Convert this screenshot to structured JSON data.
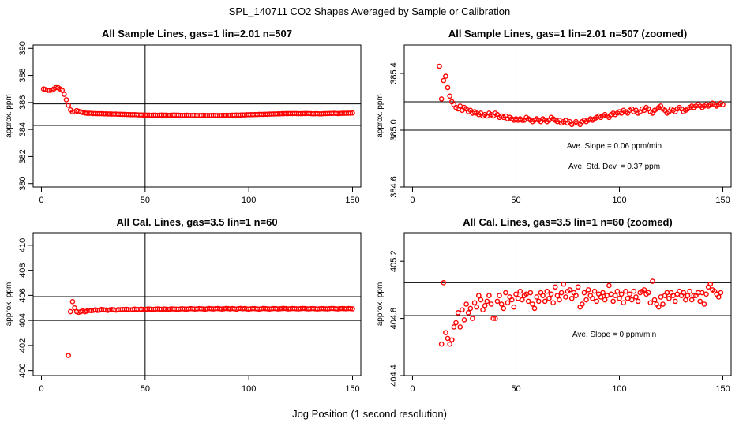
{
  "figure": {
    "title": "SPL_140711  CO2 Shapes Averaged by Sample or Calibration",
    "xlabel": "Jog Position (1 second resolution)"
  },
  "colors": {
    "points": "#ff0000",
    "lines": "#000000",
    "background": "#ffffff"
  },
  "chart_data": [
    {
      "type": "scatter",
      "title": "All Sample Lines, gas=1 lin=2.01 n=507",
      "ylabel": "approx. ppm",
      "xlim": [
        -4,
        154
      ],
      "ylim": [
        379.75,
        390.25
      ],
      "xticks": [
        0,
        50,
        100,
        150
      ],
      "yticks": [
        380,
        382,
        384,
        386,
        388,
        390
      ],
      "hlines": [
        385.9,
        384.3
      ],
      "vline": 50,
      "annotations": [],
      "series": [
        {
          "start": 1,
          "step": 1,
          "values": [
            387.0,
            386.95,
            386.9,
            386.9,
            386.92,
            387.0,
            387.1,
            387.1,
            387.0,
            386.9,
            386.6,
            386.2,
            385.8,
            385.45,
            385.3,
            385.3,
            385.4,
            385.35,
            385.3,
            385.25,
            385.22,
            385.2,
            385.2,
            385.2,
            385.18,
            385.18,
            385.17,
            385.17,
            385.17,
            385.16,
            385.16,
            385.15,
            385.15,
            385.14,
            385.14,
            385.14,
            385.13,
            385.13,
            385.12,
            385.12,
            385.11,
            385.11,
            385.1,
            385.1,
            385.1,
            385.09,
            385.08,
            385.08,
            385.07,
            385.07,
            385.06,
            385.06,
            385.05,
            385.06,
            385.06,
            385.05,
            385.06,
            385.07,
            385.06,
            385.06,
            385.05,
            385.05,
            385.06,
            385.07,
            385.06,
            385.06,
            385.05,
            385.04,
            385.05,
            385.06,
            385.05,
            385.04,
            385.04,
            385.05,
            385.04,
            385.03,
            385.04,
            385.05,
            385.04,
            385.03,
            385.03,
            385.04,
            385.05,
            385.04,
            385.03,
            385.03,
            385.04,
            385.05,
            385.05,
            385.04,
            385.05,
            385.06,
            385.06,
            385.07,
            385.06,
            385.07,
            385.08,
            385.08,
            385.09,
            385.09,
            385.1,
            385.1,
            385.11,
            385.11,
            385.12,
            385.12,
            385.12,
            385.13,
            385.13,
            385.14,
            385.14,
            385.15,
            385.15,
            385.16,
            385.16,
            385.17,
            385.17,
            385.18,
            385.18,
            385.18,
            385.18,
            385.19,
            385.18,
            385.17,
            385.17,
            385.18,
            385.18,
            385.19,
            385.18,
            385.17,
            385.16,
            385.17,
            385.17,
            385.16,
            385.16,
            385.17,
            385.18,
            385.18,
            385.19,
            385.19,
            385.2,
            385.19,
            385.18,
            385.19,
            385.2,
            385.2,
            385.2,
            385.21,
            385.21,
            385.22
          ]
        }
      ]
    },
    {
      "type": "scatter",
      "title": "All Sample Lines, gas=1 lin=2.01 n=507 (zoomed)",
      "ylabel": "approx. ppm",
      "xlim": [
        -4,
        154
      ],
      "ylim": [
        384.6,
        385.6
      ],
      "xticks": [
        0,
        50,
        100,
        150
      ],
      "yticks": [
        384.6,
        385.0,
        385.4
      ],
      "hlines": [
        385.2,
        385.0
      ],
      "vline": 50,
      "annotations": [
        "Ave. Slope =  0.06  ppm/min",
        "Ave. Std. Dev. =  0.37  ppm"
      ],
      "series": [
        {
          "start": 13,
          "step": 1,
          "values": [
            385.45,
            385.22,
            385.35,
            385.38,
            385.3,
            385.24,
            385.2,
            385.18,
            385.16,
            385.15,
            385.17,
            385.14,
            385.16,
            385.15,
            385.13,
            385.14,
            385.12,
            385.13,
            385.12,
            385.11,
            385.12,
            385.1,
            385.11,
            385.1,
            385.12,
            385.11,
            385.1,
            385.12,
            385.11,
            385.09,
            385.1,
            385.09,
            385.1,
            385.08,
            385.09,
            385.08,
            385.07,
            385.08,
            385.07,
            385.08,
            385.07,
            385.07,
            385.09,
            385.08,
            385.07,
            385.06,
            385.07,
            385.08,
            385.07,
            385.06,
            385.08,
            385.07,
            385.06,
            385.07,
            385.09,
            385.08,
            385.07,
            385.06,
            385.07,
            385.05,
            385.06,
            385.07,
            385.05,
            385.06,
            385.04,
            385.05,
            385.06,
            385.05,
            385.04,
            385.06,
            385.07,
            385.06,
            385.07,
            385.08,
            385.07,
            385.08,
            385.09,
            385.1,
            385.09,
            385.1,
            385.11,
            385.1,
            385.09,
            385.11,
            385.12,
            385.11,
            385.12,
            385.13,
            385.12,
            385.14,
            385.13,
            385.12,
            385.14,
            385.15,
            385.13,
            385.14,
            385.12,
            385.13,
            385.15,
            385.14,
            385.16,
            385.15,
            385.13,
            385.12,
            385.14,
            385.15,
            385.16,
            385.17,
            385.15,
            385.14,
            385.12,
            385.13,
            385.15,
            385.14,
            385.13,
            385.15,
            385.16,
            385.15,
            385.13,
            385.14,
            385.15,
            385.16,
            385.17,
            385.16,
            385.17,
            385.18,
            385.17,
            385.16,
            385.17,
            385.18,
            385.17,
            385.18,
            385.19,
            385.18,
            385.17,
            385.18,
            385.19,
            385.18
          ]
        }
      ]
    },
    {
      "type": "scatter",
      "title": "All Cal. Lines, gas=3.5 lin=1 n=60",
      "ylabel": "approx. ppm",
      "xlim": [
        -4,
        154
      ],
      "ylim": [
        399.6,
        411.0
      ],
      "xticks": [
        0,
        50,
        100,
        150
      ],
      "yticks": [
        400,
        402,
        404,
        406,
        408,
        410
      ],
      "hlines": [
        405.9,
        404.0
      ],
      "vline": 50,
      "annotations": [],
      "series": [
        {
          "start": 13,
          "step": 1,
          "values": [
            401.2,
            404.7,
            405.5,
            405.0,
            404.7,
            404.65,
            404.7,
            404.75,
            404.7,
            404.75,
            404.8,
            404.78,
            404.8,
            404.85,
            404.8,
            404.82,
            404.88,
            404.85,
            404.83,
            404.8,
            404.85,
            404.87,
            404.85,
            404.82,
            404.86,
            404.85,
            404.88,
            404.87,
            404.89,
            404.86,
            404.84,
            404.87,
            404.9,
            404.88,
            404.86,
            404.9,
            404.88,
            404.87,
            404.9,
            404.91,
            404.89,
            404.88,
            404.9,
            404.92,
            404.9,
            404.89,
            404.91,
            404.9,
            404.88,
            404.9,
            404.92,
            404.91,
            404.9,
            404.89,
            404.92,
            404.93,
            404.91,
            404.9,
            404.92,
            404.94,
            404.93,
            404.91,
            404.92,
            404.94,
            404.93,
            404.92,
            404.9,
            404.93,
            404.95,
            404.93,
            404.92,
            404.94,
            404.95,
            404.93,
            404.91,
            404.93,
            404.96,
            404.94,
            404.92,
            404.95,
            404.93,
            404.9,
            404.94,
            404.96,
            404.93,
            404.95,
            404.92,
            404.9,
            404.93,
            404.95,
            404.94,
            404.92,
            404.9,
            404.93,
            404.96,
            404.94,
            404.93,
            404.91,
            404.93,
            404.95,
            404.94,
            404.92,
            404.93,
            404.95,
            404.96,
            404.94,
            404.92,
            404.93,
            404.95,
            404.94,
            404.93,
            404.92,
            404.94,
            404.96,
            404.95,
            404.93,
            404.92,
            404.94,
            404.95,
            404.93,
            404.91,
            404.93,
            404.95,
            404.94,
            404.93,
            404.92,
            404.94,
            404.96,
            404.95,
            404.93,
            404.92,
            404.94,
            404.95,
            404.94,
            404.93,
            404.95,
            404.94,
            404.93
          ]
        }
      ]
    },
    {
      "type": "scatter",
      "title": "All Cal. Lines, gas=3.5 lin=1 n=60 (zoomed)",
      "ylabel": "approx. ppm",
      "xlim": [
        -4,
        154
      ],
      "ylim": [
        404.4,
        405.4
      ],
      "xticks": [
        0,
        50,
        100,
        150
      ],
      "yticks": [
        404.4,
        404.8,
        405.2
      ],
      "hlines": [
        405.05,
        404.82
      ],
      "vline": 50,
      "annotations": [
        "Ave. Slope =  0  ppm/min"
      ],
      "series": [
        {
          "start": 14,
          "step": 1,
          "values": [
            404.62,
            405.05,
            404.7,
            404.66,
            404.62,
            404.65,
            404.74,
            404.77,
            404.84,
            404.74,
            404.86,
            404.79,
            404.9,
            404.84,
            404.87,
            404.8,
            404.91,
            404.88,
            404.96,
            404.93,
            404.86,
            404.89,
            404.92,
            404.96,
            404.9,
            404.8,
            404.8,
            404.92,
            404.96,
            404.9,
            404.87,
            404.98,
            404.91,
            404.95,
            404.93,
            404.88,
            404.97,
            404.94,
            404.99,
            404.93,
            404.96,
            404.97,
            404.92,
            404.98,
            404.9,
            404.87,
            404.95,
            404.92,
            404.98,
            404.96,
            404.92,
            404.99,
            404.94,
            404.97,
            404.91,
            405.02,
            404.96,
            404.93,
            404.98,
            405.04,
            404.95,
            404.99,
            405.0,
            404.94,
            404.98,
            404.96,
            405.02,
            404.88,
            404.9,
            404.98,
            404.93,
            405.0,
            404.96,
            404.94,
            404.99,
            404.92,
            404.97,
            404.95,
            404.98,
            404.93,
            404.96,
            405.03,
            404.97,
            404.92,
            404.96,
            404.99,
            404.94,
            404.97,
            404.91,
            404.99,
            404.94,
            404.97,
            404.93,
            404.99,
            404.95,
            404.92,
            404.98,
            404.99,
            405.0,
            404.97,
            404.98,
            404.91,
            405.06,
            404.93,
            404.9,
            404.88,
            404.95,
            404.9,
            404.96,
            404.98,
            404.94,
            404.98,
            404.96,
            404.92,
            404.97,
            404.99,
            404.96,
            404.98,
            404.93,
            404.96,
            404.99,
            404.93,
            404.96,
            404.96,
            404.98,
            404.92,
            404.98,
            404.9,
            404.97,
            405.02,
            405.04,
            405.0,
            404.99,
            404.97,
            404.95,
            404.98
          ]
        }
      ]
    }
  ]
}
